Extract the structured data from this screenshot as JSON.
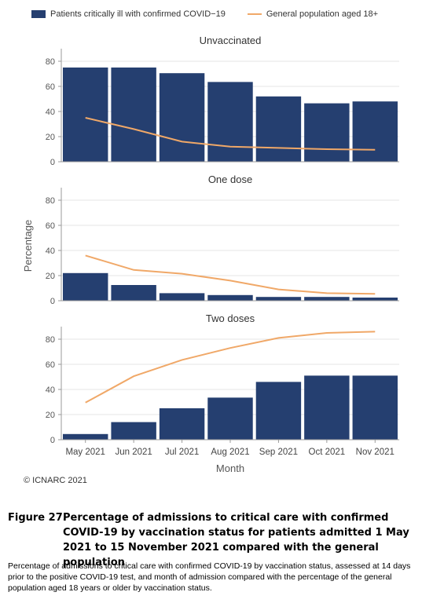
{
  "legend": {
    "bar_label": "Patients critically ill with confirmed COVID−19",
    "line_label": "General population aged 18+"
  },
  "colors": {
    "bar": "#253f70",
    "line": "#f0a868",
    "grid": "#e4e4e4",
    "axis": "#9a9a9a"
  },
  "chart_data": {
    "type": "bar",
    "categories": [
      "May 2021",
      "Jun 2021",
      "Jul 2021",
      "Aug 2021",
      "Sep 2021",
      "Oct 2021",
      "Nov 2021"
    ],
    "xlabel": "Month",
    "ylabel": "Percentage",
    "ylim": [
      0,
      90
    ],
    "yticks": [
      0,
      20,
      40,
      60,
      80
    ],
    "grid": true,
    "legend_position": "top",
    "panels": [
      {
        "title": "Unvaccinated",
        "series": [
          {
            "name": "Patients critically ill with confirmed COVID−19",
            "type": "bar",
            "values": [
              75,
              75,
              70.5,
              63.5,
              52,
              46.5,
              48
            ]
          },
          {
            "name": "General population aged 18+",
            "type": "line",
            "values": [
              35,
              26,
              16,
              12,
              11,
              10,
              9.5
            ]
          }
        ]
      },
      {
        "title": "One dose",
        "series": [
          {
            "name": "Patients critically ill with confirmed COVID−19",
            "type": "bar",
            "values": [
              22,
              12.5,
              6,
              4.5,
              3,
              3,
              2.5
            ]
          },
          {
            "name": "General population aged 18+",
            "type": "line",
            "values": [
              36,
              24.5,
              21.5,
              16,
              9,
              6,
              5.5
            ]
          }
        ]
      },
      {
        "title": "Two doses",
        "series": [
          {
            "name": "Patients critically ill with confirmed COVID−19",
            "type": "bar",
            "values": [
              4.5,
              14,
              25,
              33.5,
              46,
              51,
              51
            ]
          },
          {
            "name": "General population aged 18+",
            "type": "line",
            "values": [
              29.5,
              50.5,
              63.5,
              73,
              81,
              85,
              86
            ]
          }
        ]
      }
    ]
  },
  "copyright": "© ICNARC 2021",
  "figure": {
    "number": "Figure 27.",
    "title": "Percentage of admissions to critical care with confirmed COVID-19 by vaccination status for patients admitted 1 May 2021 to 15 November 2021 compared with the general population",
    "description": "Percentage of admissions to critical care with confirmed COVID-19 by vaccination status, assessed at 14 days prior to the positive COVID-19 test, and month of admission compared with the percentage of the general population aged 18 years or older by vaccination status."
  }
}
